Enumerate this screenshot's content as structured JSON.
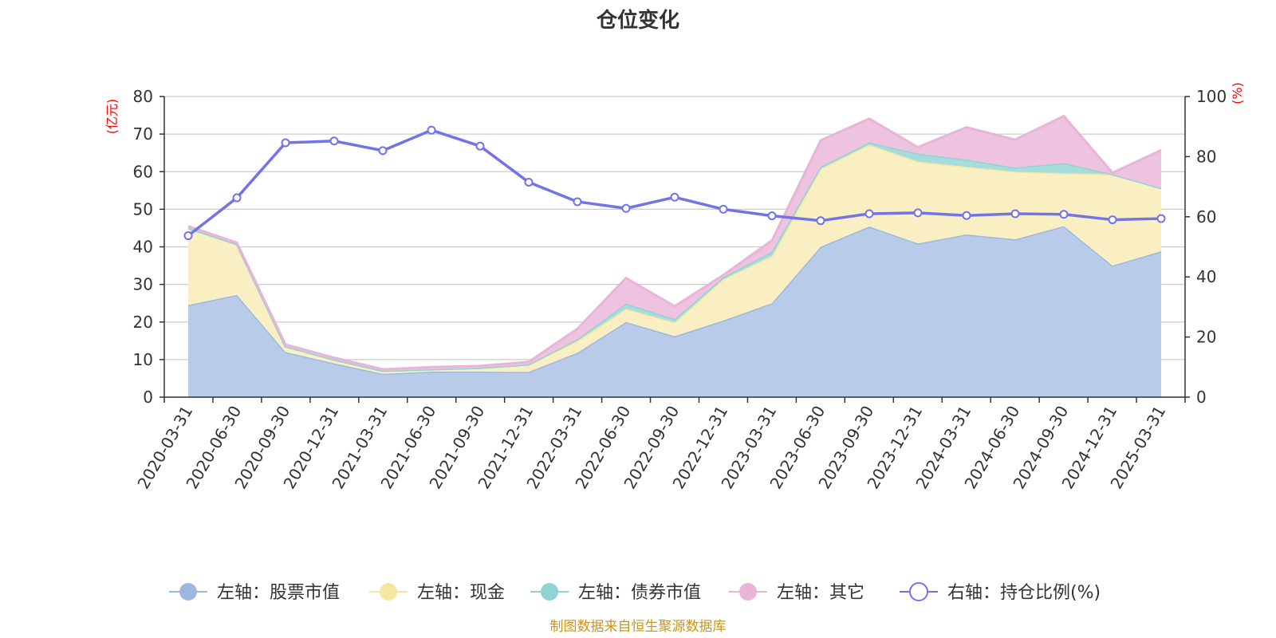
{
  "chart_data": {
    "type": "area",
    "title": "仓位变化",
    "left_axis": {
      "unit": "(亿元)",
      "min": 0,
      "max": 80,
      "ticks": [
        0,
        10,
        20,
        30,
        40,
        50,
        60,
        70,
        80
      ]
    },
    "right_axis": {
      "unit": "(%)",
      "min": 0,
      "max": 100,
      "ticks": [
        0,
        20,
        40,
        60,
        80,
        100
      ]
    },
    "grid": true,
    "legend_position": "bottom",
    "categories": [
      "2020-03-31",
      "2020-06-30",
      "2020-09-30",
      "2020-12-31",
      "2021-03-31",
      "2021-06-30",
      "2021-09-30",
      "2021-12-31",
      "2022-03-31",
      "2022-06-30",
      "2022-09-30",
      "2022-12-31",
      "2023-03-31",
      "2023-06-30",
      "2023-09-30",
      "2023-12-31",
      "2024-03-31",
      "2024-06-30",
      "2024-09-30",
      "2024-12-31",
      "2025-03-31"
    ],
    "series": [
      {
        "name": "左轴：股票市值",
        "axis": "left",
        "kind": "stacked-area",
        "color": "#9db8e0",
        "fill": "#b8cce9",
        "values": [
          24.5,
          27.2,
          12.0,
          9.0,
          6.2,
          6.8,
          6.8,
          6.7,
          11.8,
          20.0,
          16.2,
          20.4,
          25.0,
          40.0,
          45.4,
          40.9,
          43.3,
          42.0,
          45.5,
          35.0,
          38.8
        ]
      },
      {
        "name": "左轴：现金",
        "axis": "left",
        "kind": "stacked-area",
        "color": "#f5e6a0",
        "fill": "#faefc2",
        "values": [
          20.5,
          13.5,
          1.5,
          1.0,
          0.8,
          0.6,
          1.0,
          2.0,
          3.2,
          3.5,
          3.7,
          11.0,
          12.6,
          20.8,
          21.8,
          21.8,
          18.0,
          18.0,
          14.1,
          24.3,
          16.8
        ]
      },
      {
        "name": "左轴：债券市值",
        "axis": "left",
        "kind": "stacked-area",
        "color": "#8fd3d3",
        "fill": "#a6dcdc",
        "values": [
          0,
          0,
          0,
          0,
          0,
          0,
          0,
          0,
          0.4,
          1.4,
          0.9,
          0.5,
          1.1,
          0.5,
          0.6,
          2.1,
          1.9,
          1.1,
          2.7,
          0,
          0
        ]
      },
      {
        "name": "左轴：其它",
        "axis": "left",
        "kind": "stacked-area",
        "color": "#e8b4d8",
        "fill": "#edc3df",
        "values": [
          0.5,
          0.4,
          0.5,
          0.5,
          0.4,
          0.6,
          0.5,
          0.7,
          2.8,
          6.8,
          3.4,
          0.6,
          3.0,
          7.0,
          6.3,
          1.7,
          8.6,
          7.4,
          12.5,
          0.4,
          10.1
        ]
      },
      {
        "name": "右轴：持仓比例(%)",
        "axis": "right",
        "kind": "line",
        "color": "#7373e8",
        "values": [
          53.7,
          66.3,
          84.6,
          85.2,
          82.0,
          88.8,
          83.5,
          71.5,
          65.0,
          62.8,
          66.5,
          62.5,
          60.3,
          58.7,
          61.0,
          61.3,
          60.4,
          61.0,
          60.8,
          59.0,
          59.4
        ]
      }
    ]
  },
  "source_text": "制图数据来自恒生聚源数据库"
}
